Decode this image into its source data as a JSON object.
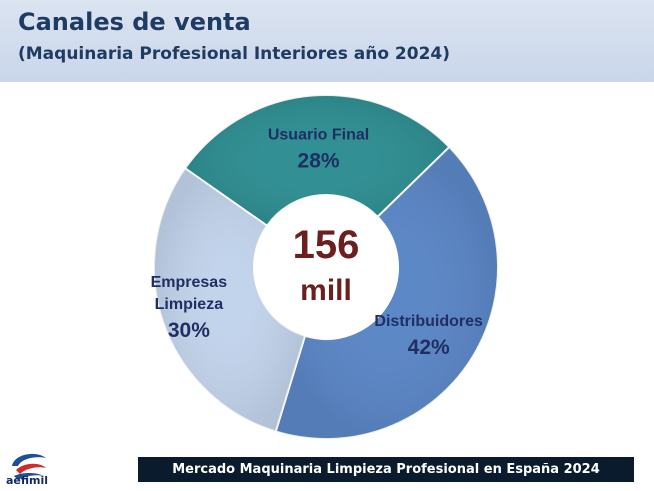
{
  "header": {
    "title": "Canales de venta",
    "subtitle": "(Maquinaria Profesional Interiores año 2024)"
  },
  "chart_data": {
    "type": "pie",
    "variant": "donut",
    "center_label": [
      "156",
      "mill"
    ],
    "categories": [
      "Usuario Final",
      "Distribuidores",
      "Empresas Limpieza"
    ],
    "values": [
      28,
      42,
      30
    ],
    "value_labels": [
      "28%",
      "42%",
      "30%"
    ],
    "label_lines": [
      [
        "Usuario Final"
      ],
      [
        "Distribuidores"
      ],
      [
        "Empresas",
        "Limpieza"
      ]
    ],
    "colors": [
      "#2f8f93",
      "#5b87c7",
      "#c2d4ec"
    ]
  },
  "footer": {
    "banner": "Mercado Maquinaria Limpieza Profesional en España 2024"
  },
  "logo": {
    "text": "aefimil",
    "icon": "aefimil-logo-icon"
  }
}
